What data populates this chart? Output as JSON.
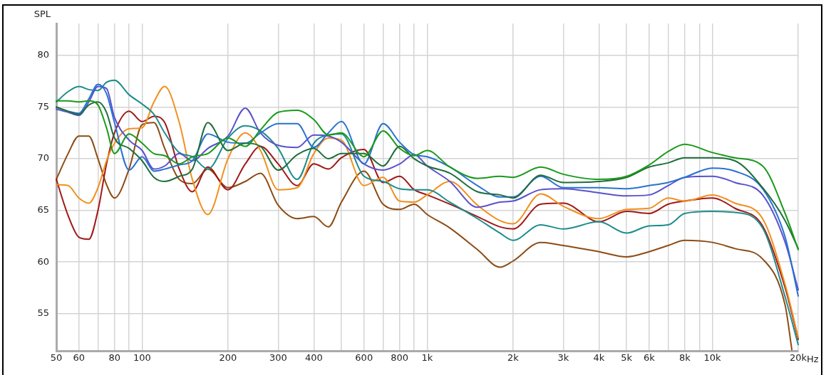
{
  "chart_data": {
    "type": "line",
    "ylabel": "SPL",
    "log": "x",
    "grid": true,
    "marker": "none",
    "line_style": "solid",
    "xlim": [
      50,
      20000
    ],
    "ylim": [
      51.4,
      83.1
    ],
    "xticks": [
      50,
      60,
      {
        "value": 70,
        "label": null
      },
      80,
      {
        "value": 90,
        "label": null
      },
      100,
      200,
      300,
      400,
      {
        "value": 500,
        "label": null
      },
      600,
      {
        "value": 700,
        "label": null
      },
      800,
      {
        "value": 900,
        "label": null
      },
      {
        "value": 1000,
        "label": "1k"
      },
      {
        "value": 2000,
        "label": "2k"
      },
      {
        "value": 3000,
        "label": "3k"
      },
      {
        "value": 4000,
        "label": "4k"
      },
      {
        "value": 5000,
        "label": "5k"
      },
      {
        "value": 6000,
        "label": "6k"
      },
      {
        "value": 7000,
        "label": null
      },
      {
        "value": 8000,
        "label": "8k"
      },
      {
        "value": 9000,
        "label": null
      },
      {
        "value": 10000,
        "label": "10k"
      },
      {
        "value": 20000,
        "label": "20k"
      }
    ],
    "xlabel": "Hz",
    "yticks": [
      55,
      60,
      65,
      70,
      75,
      80
    ],
    "x": [
      50,
      55,
      60,
      65,
      70,
      75,
      80,
      90,
      100,
      110,
      120,
      135,
      150,
      170,
      200,
      230,
      260,
      300,
      350,
      400,
      450,
      500,
      600,
      700,
      800,
      900,
      1000,
      1200,
      1500,
      1800,
      2000,
      2500,
      3000,
      4000,
      5000,
      6000,
      7000,
      8000,
      10000,
      12000,
      15000,
      18000,
      20000
    ],
    "series": [
      {
        "color": "#1a9a1a",
        "values": [
          75.6,
          75.6,
          75.5,
          75.6,
          75.2,
          73,
          70.5,
          72.4,
          71.5,
          70.5,
          70.3,
          69.5,
          70.2,
          70.5,
          72,
          71.2,
          72.8,
          74.5,
          74.7,
          73.8,
          72.3,
          72.5,
          70.2,
          72.7,
          71,
          70.3,
          70.8,
          69.2,
          68.1,
          68.3,
          68.2,
          69.2,
          68.5,
          68,
          68.3,
          69.4,
          70.7,
          71.4,
          70.6,
          70.1,
          69.3,
          64.7,
          61.2
        ]
      },
      {
        "color": "#1f6e3c",
        "values": [
          75,
          74.6,
          74.3,
          75.2,
          75.5,
          74.5,
          72,
          71,
          69.8,
          68.2,
          67.8,
          68.3,
          69,
          73.5,
          70.8,
          71.5,
          71.2,
          68.9,
          70.4,
          71,
          70,
          70.5,
          70.5,
          69.3,
          71.2,
          70,
          69.3,
          68.6,
          66.8,
          66.5,
          66.2,
          68.4,
          67.7,
          67.8,
          68.2,
          69.2,
          69.6,
          70.1,
          70.1,
          69.8,
          67.2,
          64,
          61.3
        ]
      },
      {
        "color": "#2a72d2",
        "values": [
          75,
          74.6,
          74.4,
          75.8,
          77.2,
          76.3,
          73.5,
          68.9,
          70.2,
          68.8,
          69,
          69.4,
          69.8,
          72.4,
          71.6,
          71.5,
          72.5,
          73.4,
          73.4,
          71.1,
          72.5,
          73.6,
          69.5,
          73.4,
          71.6,
          70.4,
          70.2,
          69.2,
          67.4,
          66.3,
          66.3,
          68.3,
          67.2,
          67.2,
          67.1,
          67.4,
          67.7,
          68.2,
          69.1,
          68.8,
          67.1,
          62.4,
          56.7
        ]
      },
      {
        "color": "#5a52cc",
        "values": [
          74.8,
          74.5,
          74.2,
          75.5,
          77,
          76.8,
          74,
          71.8,
          70.8,
          69,
          69.3,
          70.5,
          69.8,
          71,
          72.2,
          74.9,
          72.5,
          71.3,
          71.1,
          72.3,
          72.2,
          71.6,
          69.5,
          68.9,
          69.5,
          70.4,
          69.3,
          67.8,
          65.3,
          65.8,
          65.9,
          67,
          67.1,
          66.7,
          66.4,
          66.5,
          67.4,
          68.2,
          68.3,
          67.7,
          66.5,
          61.9,
          57.3
        ]
      },
      {
        "color": "#1e8c8c",
        "values": [
          75.5,
          76.5,
          77,
          76.7,
          76.6,
          77.4,
          77.6,
          76.2,
          75.3,
          74.3,
          72.5,
          70.6,
          70.2,
          69,
          72,
          73.2,
          72.7,
          71,
          68,
          71.5,
          72.3,
          72.4,
          68.3,
          67.8,
          67.1,
          67,
          67,
          65.8,
          64.2,
          62.8,
          62.1,
          63.6,
          63.2,
          63.9,
          62.8,
          63.5,
          63.6,
          64.7,
          64.9,
          64.8,
          63.3,
          56.6,
          52
        ]
      },
      {
        "color": "#f0901e",
        "values": [
          67.5,
          67.4,
          66.2,
          65.7,
          67.2,
          69.8,
          71.5,
          72.9,
          73,
          75.5,
          77,
          73.5,
          68,
          64.6,
          70,
          72.5,
          70.8,
          67,
          67.2,
          70.5,
          72,
          71.8,
          67.4,
          68.2,
          65.9,
          65.8,
          66.5,
          67.8,
          65.5,
          64,
          63.7,
          66.6,
          65.4,
          64.2,
          65.1,
          65.2,
          66.2,
          65.9,
          66.5,
          65.7,
          64.2,
          57.8,
          52.7
        ]
      },
      {
        "color": "#a01818",
        "values": [
          68,
          64.5,
          62.4,
          62.2,
          65,
          69.5,
          72.5,
          74.6,
          73.6,
          74.1,
          73.5,
          69,
          66.8,
          69.2,
          67,
          69.5,
          71.2,
          69.5,
          67.4,
          69.5,
          69,
          70.1,
          70.9,
          67.7,
          68.3,
          67,
          66.5,
          65.6,
          64.4,
          63.4,
          63.2,
          65.6,
          65.7,
          63.9,
          64.9,
          64.7,
          65.6,
          65.9,
          66.2,
          65.2,
          63.5,
          57.5,
          52.5
        ]
      },
      {
        "color": "#8c4c14",
        "x": [
          50,
          55,
          60,
          65,
          70,
          75,
          80,
          90,
          100,
          110,
          120,
          135,
          150,
          170,
          200,
          230,
          260,
          300,
          350,
          400,
          450,
          500,
          600,
          700,
          800,
          900,
          1000,
          1200,
          1500,
          1800,
          2000,
          2500,
          3000,
          4000,
          5000,
          6000,
          7000,
          8000,
          10000,
          12000,
          15000,
          18000,
          19000
        ],
        "values": [
          68,
          70.5,
          72.2,
          72.2,
          70,
          67.5,
          66.2,
          69,
          73.3,
          73.5,
          71,
          68,
          67.6,
          69,
          67.2,
          67.8,
          68.6,
          65.5,
          64.2,
          64.4,
          63.4,
          65.8,
          68.8,
          65.6,
          65.1,
          65.6,
          64.6,
          63.3,
          61.2,
          59.5,
          60.1,
          61.9,
          61.6,
          61,
          60.5,
          61,
          61.6,
          62.1,
          61.9,
          61.3,
          60.3,
          55.8,
          51.5
        ]
      }
    ]
  }
}
